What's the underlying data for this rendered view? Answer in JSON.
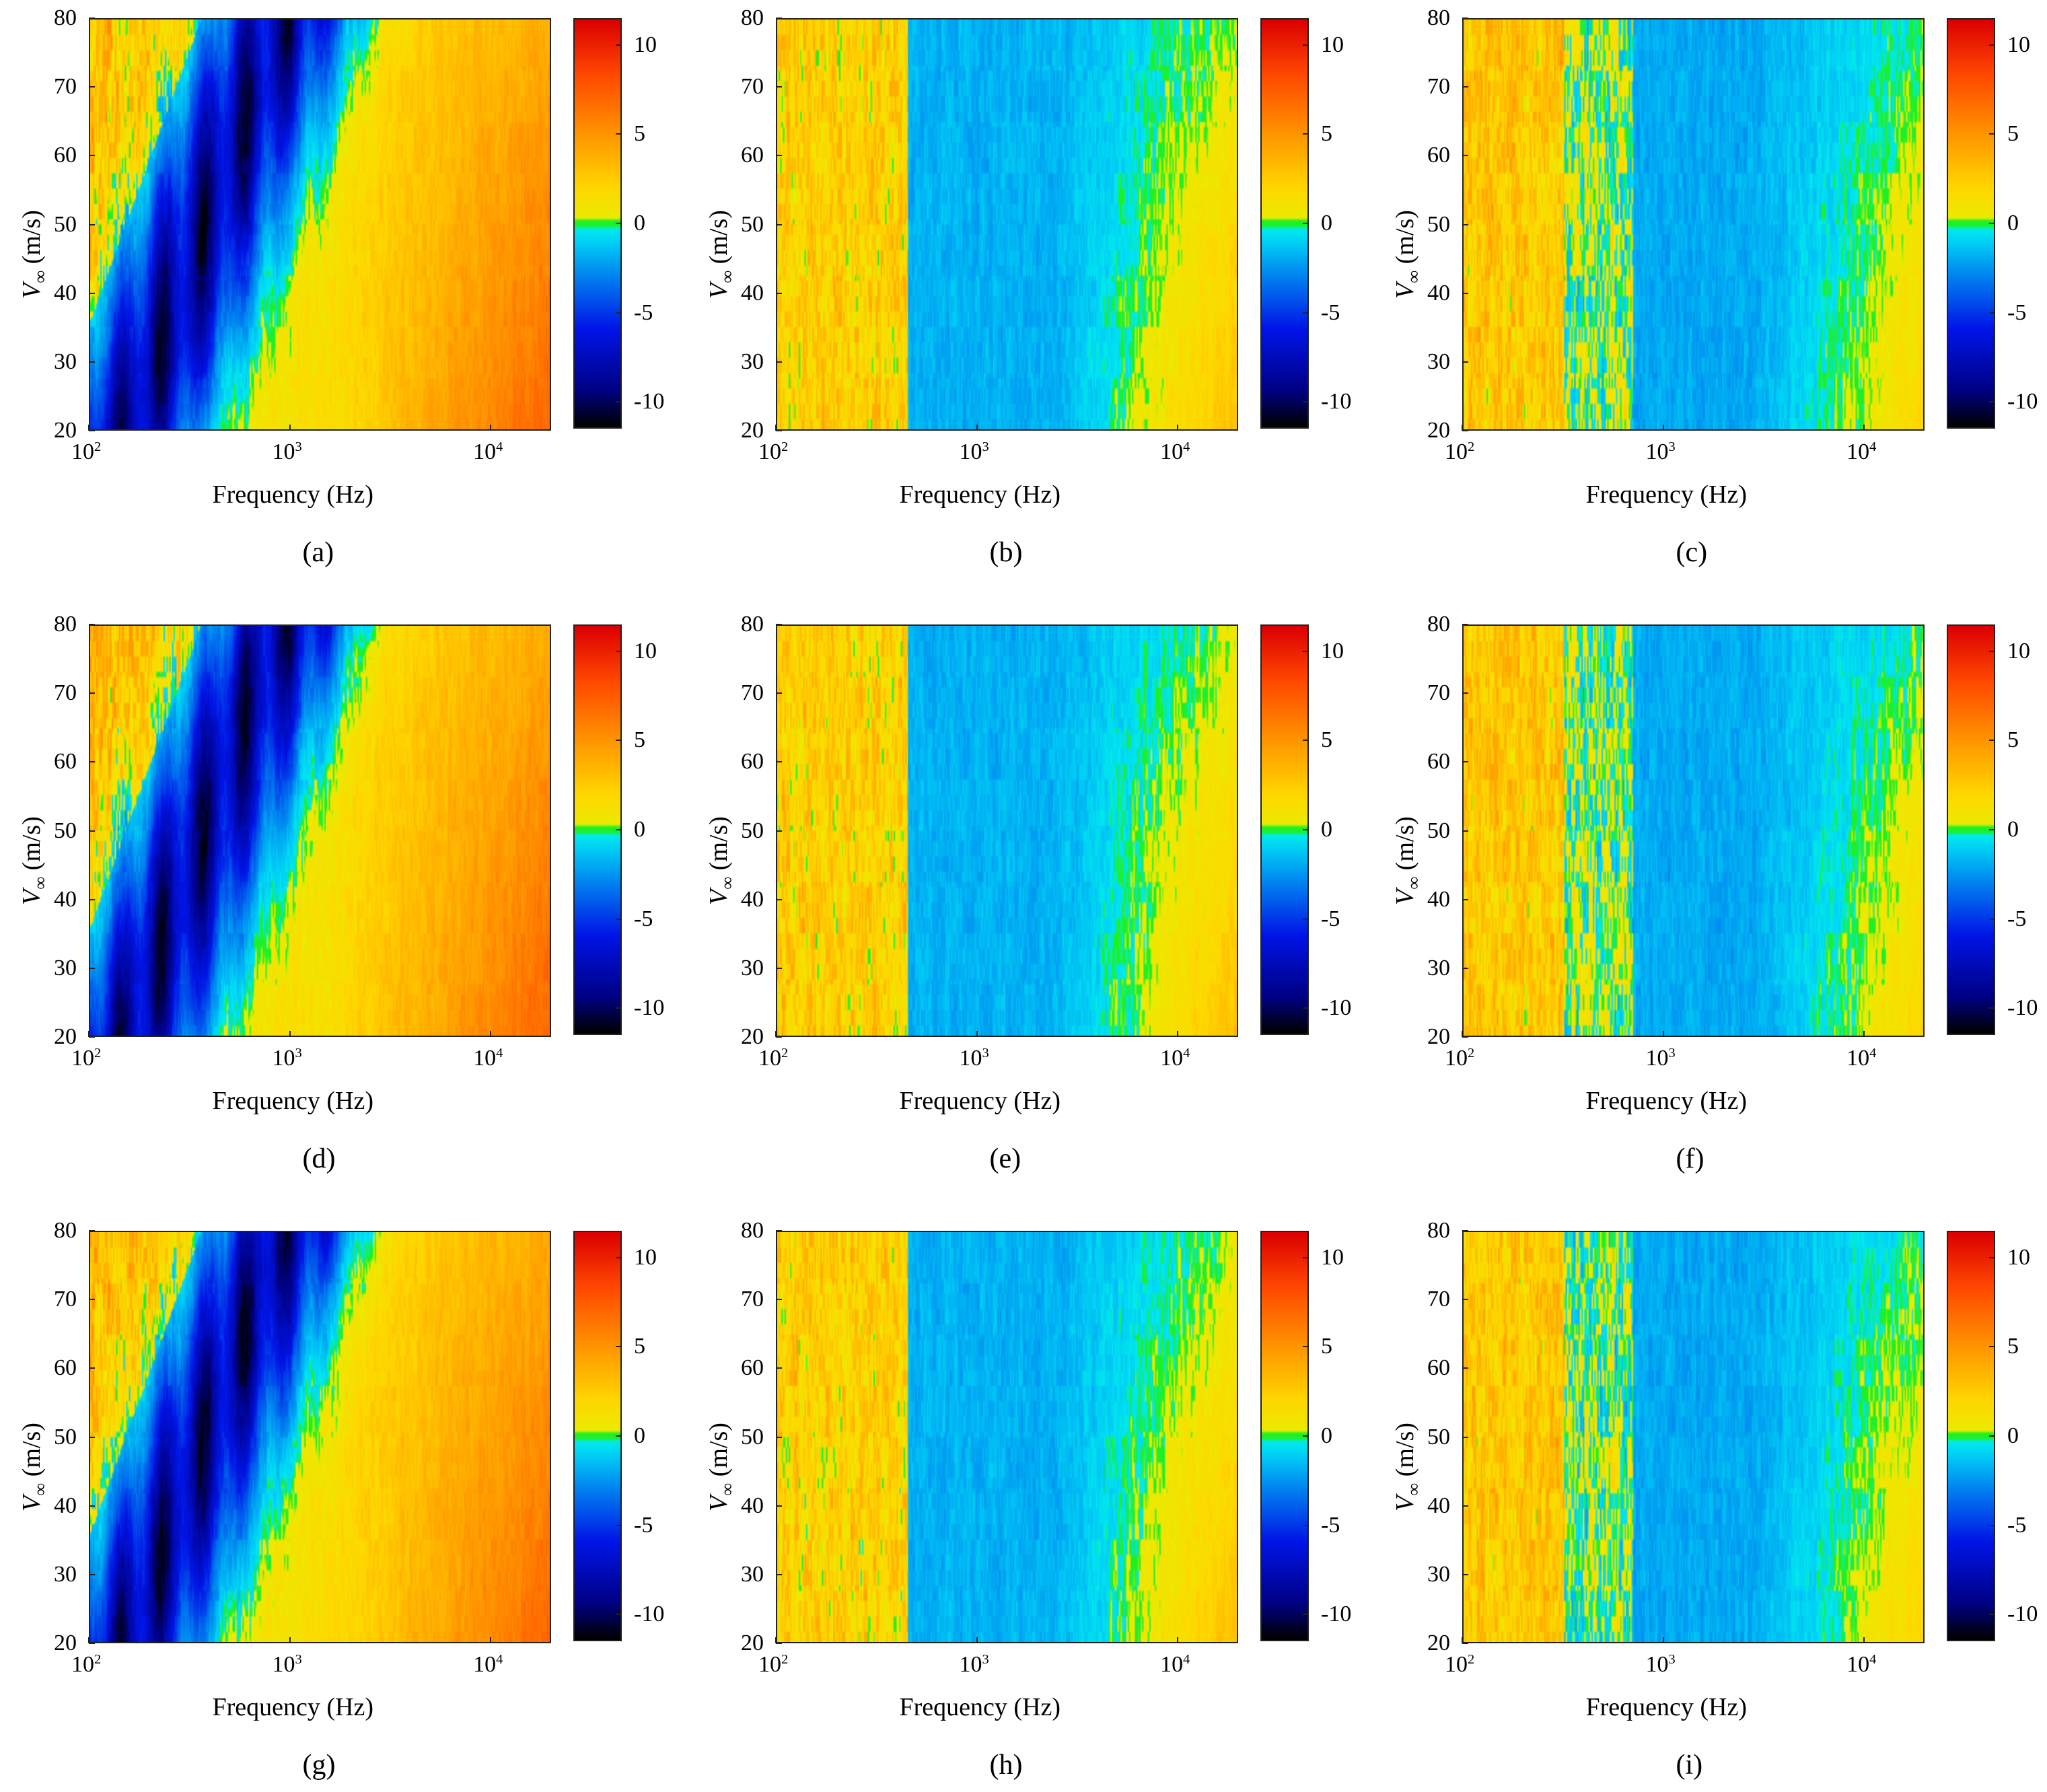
{
  "chart_data": {
    "type": "heatmap",
    "panels": [
      {
        "caption": "(a)",
        "variant": "strong"
      },
      {
        "caption": "(b)",
        "variant": "mild"
      },
      {
        "caption": "(c)",
        "variant": "mixed"
      },
      {
        "caption": "(d)",
        "variant": "strong"
      },
      {
        "caption": "(e)",
        "variant": "mild"
      },
      {
        "caption": "(f)",
        "variant": "mixed"
      },
      {
        "caption": "(g)",
        "variant": "strong"
      },
      {
        "caption": "(h)",
        "variant": "mild"
      },
      {
        "caption": "(i)",
        "variant": "mixed"
      }
    ],
    "x_axis": {
      "label": "Frequency (Hz)",
      "scale": "log",
      "range": [
        100,
        20000
      ],
      "ticks": [
        {
          "value": 100,
          "base": "10",
          "exp": "2"
        },
        {
          "value": 1000,
          "base": "10",
          "exp": "3"
        },
        {
          "value": 10000,
          "base": "10",
          "exp": "4"
        }
      ]
    },
    "y_axis": {
      "label_var": "V",
      "label_sub": "∞",
      "label_unit": "(m/s)",
      "range": [
        20,
        80
      ],
      "ticks": [
        "20",
        "30",
        "40",
        "50",
        "60",
        "70",
        "80"
      ]
    },
    "colorbar": {
      "range": [
        -11.5,
        11.5
      ],
      "ticks": [
        "10",
        "5",
        "0",
        "-5",
        "-10"
      ],
      "tick_values": [
        10,
        5,
        0,
        -5,
        -10
      ]
    },
    "grid": false
  }
}
